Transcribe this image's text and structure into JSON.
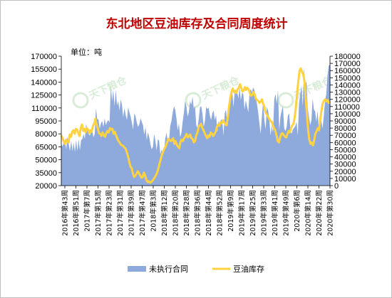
{
  "chart_data": {
    "type": "area",
    "title": "东北地区豆油库存及合同周度统计",
    "unit_label": "单位：吨",
    "watermark": "天下粮仓",
    "colors": {
      "area": "#8ea9db",
      "line": "#ffd23f",
      "title": "#c00000"
    },
    "y_left": {
      "min": 20000,
      "max": 170000,
      "step": 15000
    },
    "y_right": {
      "min": 0,
      "max": 180000,
      "step": 10000
    },
    "x_tick_labels": [
      "2016年第43周",
      "2016年第51周",
      "2017年第7周",
      "2017年第15周",
      "2017年第23周",
      "2017年第31周",
      "2017年第39周",
      "2017年第47周",
      "2018年第3周",
      "2018年第12周",
      "2018年第20周",
      "2018年第28周",
      "2018年第36周",
      "2018年第44周",
      "2018年第52周",
      "2019年第9周",
      "2019年第17周",
      "2019年第25周",
      "2019年第33周",
      "2019年第41周",
      "2019年第49周",
      "2020年第6周",
      "2020年第14周",
      "2020年第22周",
      "2020年第30周"
    ],
    "legend": [
      "未执行合同",
      "豆油库存"
    ],
    "series": [
      {
        "name": "未执行合同",
        "type": "area",
        "axis": "left",
        "values": [
          68000,
          65000,
          71000,
          73000,
          62000,
          77000,
          68000,
          60000,
          72000,
          60000,
          70000,
          59000,
          73000,
          60000,
          74000,
          61000,
          73000,
          74000,
          80000,
          74000,
          91000,
          86000,
          80000,
          78000,
          82000,
          84000,
          76000,
          80000,
          110000,
          97000,
          97000,
          86000,
          92000,
          95000,
          88000,
          98000,
          90000,
          94000,
          96000,
          93000,
          136000,
          118000,
          131000,
          112000,
          131000,
          113000,
          118000,
          107000,
          120000,
          114000,
          99000,
          110000,
          102000,
          96000,
          111000,
          105000,
          100000,
          93000,
          85000,
          104000,
          100000,
          93000,
          88000,
          91000,
          98000,
          94000,
          90000,
          79000,
          88000,
          73000,
          82000,
          76000,
          68000,
          62000,
          65000,
          80000,
          72000,
          61000,
          74000,
          72000,
          56000,
          62000,
          55000,
          60000,
          75000,
          81000,
          70000,
          72000,
          89000,
          95000,
          105000,
          112000,
          108000,
          98000,
          84000,
          92000,
          76000,
          81000,
          94000,
          104000,
          118000,
          112000,
          100000,
          105000,
          118000,
          114000,
          123000,
          109000,
          112000,
          90000,
          87000,
          97000,
          111000,
          112000,
          103000,
          88000,
          95000,
          111000,
          109000,
          110000,
          101000,
          96000,
          104000,
          107000,
          96000,
          102000,
          82000,
          95000,
          89000,
          97000,
          95000,
          78000,
          104000,
          108000,
          91000,
          106000,
          118000,
          122000,
          131000,
          111000,
          128000,
          126000,
          129000,
          121000,
          134000,
          119000,
          128000,
          126000,
          108000,
          119000,
          112000,
          105000,
          127000,
          132000,
          128000,
          134000,
          130000,
          122000,
          115000,
          105000,
          92000,
          80000,
          100000,
          118000,
          96000,
          85000,
          111000,
          107000,
          97000,
          78000,
          90000,
          81000,
          120000,
          126000,
          115000,
          131000,
          84000,
          100000,
          107000,
          112000,
          87000,
          83000,
          88000,
          101000,
          104000,
          85000,
          80000,
          85000,
          87000,
          89000,
          94000,
          78000,
          115000,
          126000,
          136000,
          112000,
          156000,
          137000,
          141000,
          110000,
          99000,
          90000,
          96000,
          121000,
          108000,
          106000,
          94000,
          107000,
          84000,
          100000,
          95000,
          86000,
          101000,
          118000,
          126000,
          148000,
          159000,
          160000
        ]
      },
      {
        "name": "豆油库存",
        "type": "line",
        "axis": "right",
        "values": [
          70000,
          66000,
          62000,
          58000,
          64000,
          61000,
          60000,
          71000,
          68000,
          75000,
          77000,
          72000,
          79000,
          78000,
          73000,
          69000,
          80000,
          85000,
          76000,
          79000,
          74000,
          80000,
          78000,
          73000,
          77000,
          75000,
          83000,
          86000,
          93000,
          85000,
          80000,
          73000,
          72000,
          69000,
          74000,
          70000,
          68000,
          73000,
          76000,
          74000,
          80000,
          78000,
          79000,
          72000,
          75000,
          70000,
          66000,
          62000,
          60000,
          57000,
          56000,
          55000,
          53000,
          51000,
          46000,
          40000,
          32000,
          26000,
          24000,
          16000,
          12000,
          14000,
          17000,
          20000,
          17000,
          14000,
          11000,
          12000,
          18000,
          14000,
          8000,
          5000,
          6000,
          4000,
          5000,
          7000,
          9000,
          12000,
          15000,
          19000,
          25000,
          32000,
          38000,
          44000,
          48000,
          52000,
          55000,
          60000,
          65000,
          64000,
          62000,
          63000,
          66000,
          58000,
          62000,
          57000,
          54000,
          52000,
          61000,
          64000,
          62000,
          66000,
          68000,
          72000,
          67000,
          69000,
          71000,
          66000,
          65000,
          60000,
          62000,
          70000,
          74000,
          82000,
          84000,
          86000,
          80000,
          77000,
          73000,
          69000,
          66000,
          70000,
          68000,
          74000,
          72000,
          69000,
          72000,
          75000,
          82000,
          85000,
          83000,
          88000,
          87000,
          91000,
          88000,
          85000,
          84000,
          96000,
          110000,
          122000,
          131000,
          135000,
          130000,
          132000,
          129000,
          134000,
          136000,
          141000,
          136000,
          131000,
          132000,
          137000,
          133000,
          136000,
          134000,
          129000,
          125000,
          126000,
          130000,
          127000,
          121000,
          119000,
          118000,
          115000,
          117000,
          120000,
          114000,
          110000,
          102000,
          99000,
          96000,
          93000,
          90000,
          89000,
          84000,
          80000,
          77000,
          70000,
          62000,
          60000,
          67000,
          72000,
          73000,
          70000,
          68000,
          67000,
          72000,
          76000,
          74000,
          80000,
          84000,
          86000,
          95000,
          110000,
          129000,
          146000,
          160000,
          163000,
          158000,
          155000,
          145000,
          122000,
          100000,
          78000,
          64000,
          58000,
          60000,
          56000,
          63000,
          72000,
          76000,
          80000,
          77000,
          92000,
          104000,
          114000,
          118000,
          120000,
          117000,
          119000,
          115000,
          117000
        ]
      }
    ]
  }
}
